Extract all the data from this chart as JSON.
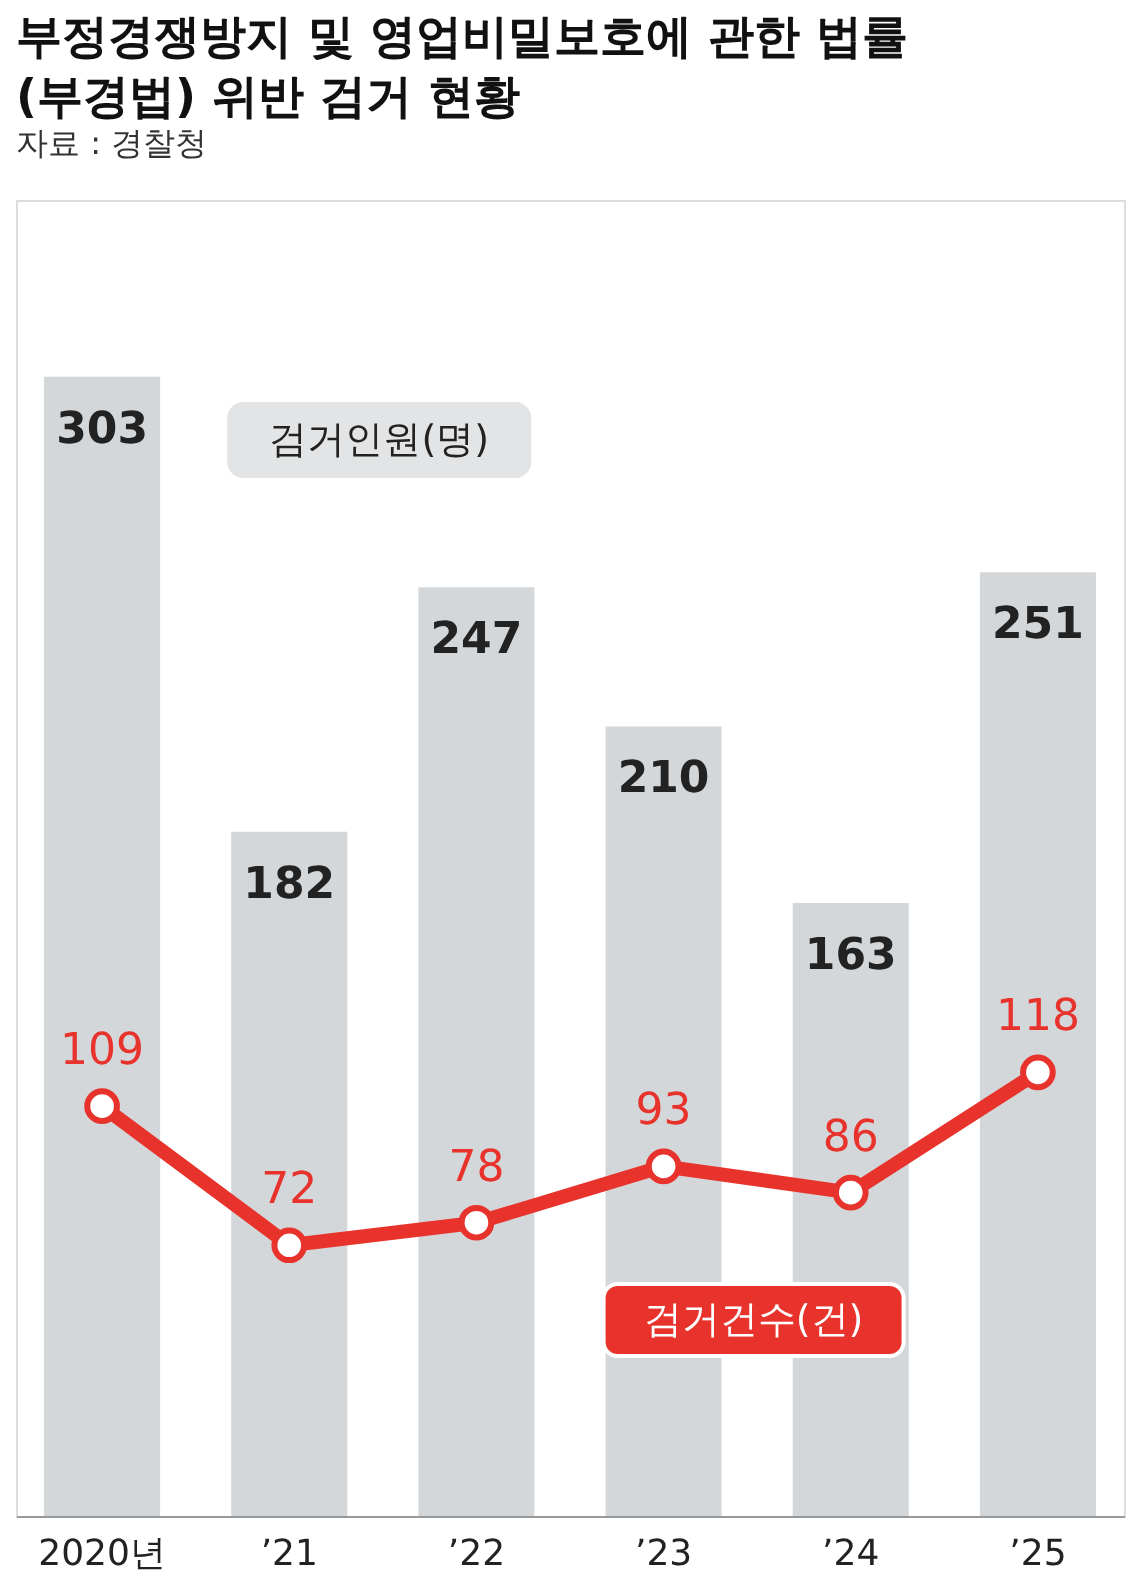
{
  "chart_data": {
    "type": "bar",
    "title": "부정경쟁방지 및 영업비밀보호에 관한 법률\n(부경법) 위반 검거 현황",
    "annotations": [
      "자료 : 경찰청"
    ],
    "categories": [
      "2020년",
      "’21",
      "’22",
      "’23",
      "’24",
      "’25"
    ],
    "series": [
      {
        "name": "검거인원(명)",
        "color": "#d4d7d9",
        "values": [
          303,
          182,
          247,
          210,
          163,
          251
        ]
      },
      {
        "name": "검거건수(건)",
        "type": "line",
        "color": "#e8332c",
        "values": [
          109,
          72,
          78,
          93,
          86,
          118
        ]
      }
    ],
    "data_labels": true,
    "marker": "circle",
    "line_style": "solid",
    "grid": false
  }
}
